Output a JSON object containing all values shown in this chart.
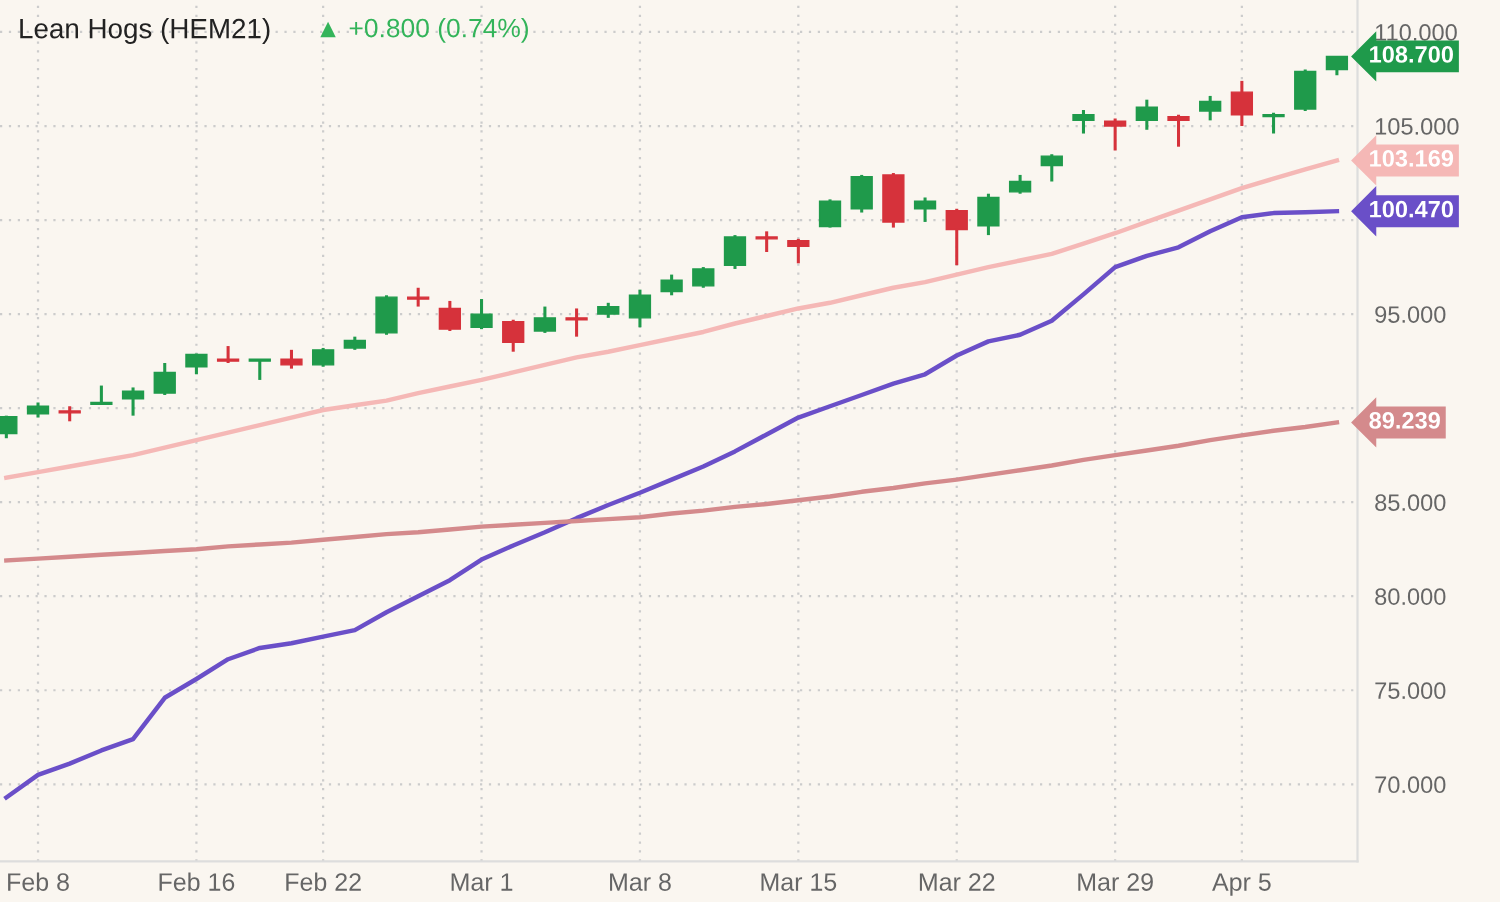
{
  "chart_data": {
    "type": "candlestick",
    "title": "Lean Hogs (HEM21)",
    "subtitle": "▲ +0.800 (0.74%)",
    "categories": [
      null,
      "Feb 8",
      null,
      null,
      null,
      null,
      "Feb 16",
      null,
      null,
      null,
      "Feb 22",
      null,
      null,
      null,
      null,
      "Mar 1",
      null,
      null,
      null,
      null,
      "Mar 8",
      null,
      null,
      null,
      null,
      "Mar 15",
      null,
      null,
      null,
      null,
      "Mar 22",
      null,
      null,
      null,
      null,
      "Mar 29",
      null,
      null,
      null,
      "Apr 5",
      null,
      null,
      null
    ],
    "ohlc": [
      [
        88.65,
        89.6,
        88.4,
        89.54
      ],
      [
        89.7,
        90.3,
        89.5,
        90.1
      ],
      [
        89.85,
        90.1,
        89.3,
        89.75
      ],
      [
        90.2,
        91.2,
        90.2,
        90.3
      ],
      [
        90.5,
        91.1,
        89.6,
        90.9
      ],
      [
        90.8,
        92.4,
        90.7,
        91.9
      ],
      [
        92.2,
        92.9,
        91.8,
        92.85
      ],
      [
        92.6,
        93.3,
        92.4,
        92.5
      ],
      [
        92.5,
        92.6,
        91.5,
        92.6
      ],
      [
        92.6,
        93.1,
        92.1,
        92.3
      ],
      [
        92.3,
        93.2,
        92.2,
        93.1
      ],
      [
        93.2,
        93.8,
        93.1,
        93.6
      ],
      [
        94.0,
        96.0,
        93.9,
        95.9
      ],
      [
        95.9,
        96.4,
        95.4,
        95.8
      ],
      [
        95.3,
        95.7,
        94.1,
        94.2
      ],
      [
        94.3,
        95.8,
        94.2,
        95.0
      ],
      [
        94.6,
        94.7,
        93.0,
        93.5
      ],
      [
        94.1,
        95.4,
        94.0,
        94.8
      ],
      [
        94.8,
        95.3,
        93.8,
        94.7
      ],
      [
        95.0,
        95.6,
        94.8,
        95.4
      ],
      [
        94.8,
        96.3,
        94.3,
        96.0
      ],
      [
        96.2,
        97.1,
        96.0,
        96.8
      ],
      [
        96.5,
        97.5,
        96.4,
        97.4
      ],
      [
        97.6,
        99.2,
        97.4,
        99.1
      ],
      [
        99.1,
        99.4,
        98.3,
        99.0
      ],
      [
        98.9,
        99.0,
        97.7,
        98.6
      ],
      [
        99.65,
        101.1,
        99.6,
        101.0
      ],
      [
        100.6,
        102.4,
        100.4,
        102.3
      ],
      [
        102.4,
        102.5,
        99.6,
        99.9
      ],
      [
        100.6,
        101.2,
        99.9,
        101.0
      ],
      [
        100.5,
        100.6,
        97.6,
        99.5
      ],
      [
        99.7,
        101.4,
        99.2,
        101.2
      ],
      [
        101.5,
        102.4,
        101.4,
        102.05
      ],
      [
        102.9,
        103.5,
        102.05,
        103.4
      ],
      [
        105.3,
        105.85,
        104.6,
        105.6
      ],
      [
        105.25,
        105.4,
        103.7,
        105.0
      ],
      [
        105.3,
        106.4,
        104.8,
        106.0
      ],
      [
        105.5,
        105.6,
        103.9,
        105.3
      ],
      [
        105.8,
        106.6,
        105.3,
        106.3
      ],
      [
        106.8,
        107.4,
        105.0,
        105.6
      ],
      [
        105.5,
        105.7,
        104.6,
        105.6
      ],
      [
        105.9,
        108.0,
        105.8,
        107.9
      ],
      [
        108.0,
        108.7,
        107.7,
        108.7
      ]
    ],
    "colors": [
      "#1f9a4b",
      "#1f9a4b",
      "#d6323b",
      "#1f9a4b",
      "#1f9a4b",
      "#1f9a4b",
      "#1f9a4b",
      "#d6323b",
      "#1f9a4b",
      "#d6323b",
      "#1f9a4b",
      "#1f9a4b",
      "#1f9a4b",
      "#d6323b",
      "#d6323b",
      "#1f9a4b",
      "#d6323b",
      "#1f9a4b",
      "#d6323b",
      "#1f9a4b",
      "#1f9a4b",
      "#1f9a4b",
      "#1f9a4b",
      "#1f9a4b",
      "#d6323b",
      "#d6323b",
      "#1f9a4b",
      "#1f9a4b",
      "#d6323b",
      "#1f9a4b",
      "#d6323b",
      "#1f9a4b",
      "#1f9a4b",
      "#1f9a4b",
      "#1f9a4b",
      "#d6323b",
      "#1f9a4b",
      "#d6323b",
      "#1f9a4b",
      "#d6323b",
      "#1f9a4b",
      "#1f9a4b",
      "#1f9a4b"
    ],
    "series": [
      {
        "type": "line",
        "color": "#f5b8b6",
        "values": [
          86.3,
          86.6,
          86.9,
          87.2,
          87.5,
          87.9,
          88.3,
          88.7,
          89.1,
          89.5,
          89.9,
          90.15,
          90.4,
          90.8,
          91.15,
          91.5,
          91.9,
          92.3,
          92.7,
          93.0,
          93.35,
          93.7,
          94.05,
          94.5,
          94.9,
          95.3,
          95.6,
          96.0,
          96.4,
          96.7,
          97.1,
          97.5,
          97.85,
          98.2,
          98.75,
          99.3,
          99.9,
          100.5,
          101.1,
          101.7,
          102.2,
          102.7,
          103.169
        ],
        "value_labels": [
          null,
          null,
          null,
          null,
          null,
          null,
          null,
          null,
          null,
          null,
          null,
          null,
          null,
          null,
          null,
          null,
          null,
          null,
          null,
          null,
          null,
          null,
          null,
          null,
          null,
          null,
          null,
          null,
          null,
          null,
          null,
          null,
          null,
          null,
          null,
          null,
          null,
          null,
          null,
          null,
          null,
          null,
          "103.169"
        ]
      },
      {
        "type": "line",
        "color": "#6a4fc8",
        "values": [
          69.3,
          70.5,
          71.1,
          71.8,
          72.4,
          74.6,
          75.6,
          76.65,
          77.25,
          77.5,
          77.85,
          78.2,
          79.15,
          80.0,
          80.85,
          81.95,
          82.7,
          83.4,
          84.15,
          84.85,
          85.5,
          86.2,
          86.9,
          87.7,
          88.6,
          89.5,
          90.1,
          90.7,
          91.3,
          91.8,
          92.8,
          93.55,
          93.9,
          94.65,
          96.05,
          97.5,
          98.1,
          98.55,
          99.4,
          100.15,
          100.37,
          100.42,
          100.47
        ],
        "value_labels": [
          null,
          null,
          null,
          null,
          null,
          null,
          null,
          null,
          null,
          null,
          null,
          null,
          null,
          null,
          null,
          null,
          null,
          null,
          null,
          null,
          null,
          null,
          null,
          null,
          null,
          null,
          null,
          null,
          null,
          null,
          null,
          null,
          null,
          null,
          null,
          null,
          null,
          null,
          null,
          null,
          null,
          null,
          "100.470"
        ]
      },
      {
        "type": "line",
        "color": "#d48a8c",
        "values": [
          81.9,
          82.0,
          82.1,
          82.2,
          82.3,
          82.4,
          82.5,
          82.65,
          82.75,
          82.85,
          83.0,
          83.15,
          83.3,
          83.4,
          83.55,
          83.7,
          83.8,
          83.9,
          84.0,
          84.1,
          84.2,
          84.4,
          84.55,
          84.75,
          84.9,
          85.1,
          85.3,
          85.55,
          85.75,
          86.0,
          86.2,
          86.45,
          86.7,
          86.95,
          87.25,
          87.5,
          87.75,
          88.0,
          88.3,
          88.55,
          88.8,
          89.0,
          89.239
        ],
        "value_labels": [
          null,
          null,
          null,
          null,
          null,
          null,
          null,
          null,
          null,
          null,
          null,
          null,
          null,
          null,
          null,
          null,
          null,
          null,
          null,
          null,
          null,
          null,
          null,
          null,
          null,
          null,
          null,
          null,
          null,
          null,
          null,
          null,
          null,
          null,
          null,
          null,
          null,
          null,
          null,
          null,
          null,
          null,
          "89.239"
        ]
      }
    ],
    "annotations": [
      "108.700"
    ],
    "ylim": [
      65.9,
      111.7
    ],
    "yticks": [
      {
        "value": 70,
        "label": "70.000"
      },
      {
        "value": 75,
        "label": "75.000"
      },
      {
        "value": 80,
        "label": "80.000"
      },
      {
        "value": 85,
        "label": "85.000"
      },
      {
        "value": 90,
        "label": null
      },
      {
        "value": 95,
        "label": "95.000"
      },
      {
        "value": 100,
        "label": null
      },
      {
        "value": 105,
        "label": "105.000"
      },
      {
        "value": 110,
        "label": "110.000"
      }
    ],
    "grid": true,
    "legend": false
  }
}
